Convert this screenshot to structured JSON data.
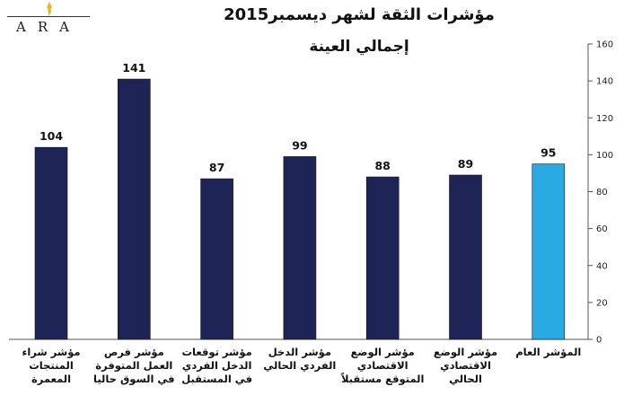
{
  "logo": {
    "text": "ARA"
  },
  "chart_data": {
    "type": "bar",
    "title": "مؤشرات الثقة لشهر ديسمبر2015",
    "subtitle": "إجمالي العينة",
    "categories": [
      "مؤشر شراء المنتجات المعمرة",
      "مؤشر فرص العمل المتوفرة في السوق حاليا",
      "مؤشر توقعات الدخل الفردي في المستقبل",
      "مؤشر الدخل الفردي الحالي",
      "مؤشر الوضع الاقتصادي المتوقع مستقبلاً",
      "مؤشر الوضع الاقتصادي الحالي",
      "المؤشر العام"
    ],
    "values": [
      104,
      141,
      87,
      99,
      88,
      89,
      95
    ],
    "colors": [
      "#1f2456",
      "#1f2456",
      "#1f2456",
      "#1f2456",
      "#1f2456",
      "#1f2456",
      "#29aae2"
    ],
    "ylim": [
      0,
      160
    ],
    "yticks": [
      0,
      20,
      40,
      60,
      80,
      100,
      120,
      140,
      160
    ],
    "y_axis_side": "right",
    "grid": false,
    "legend": "none"
  }
}
